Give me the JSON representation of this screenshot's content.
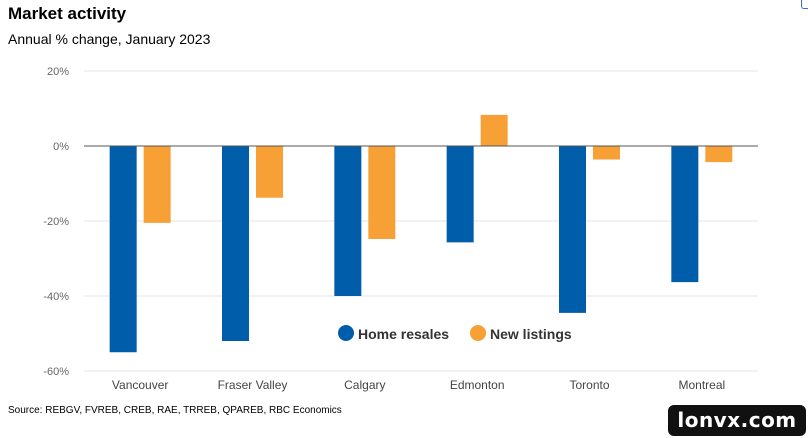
{
  "title": "Market activity",
  "subtitle": "Annual % change, January 2023",
  "source": "Source: REBGV, FVREB, CREB, RAE, TRREB, QPAREB, RBC Economics",
  "watermark": "lonvx.com",
  "colors": {
    "home_resales": "#005daa",
    "new_listings": "#f7a035",
    "grid": "#e6e6e6",
    "zero_line": "#555555"
  },
  "chart_data": {
    "type": "bar",
    "title": "Market activity",
    "subtitle": "Annual % change, January 2023",
    "categories": [
      "Vancouver",
      "Fraser Valley",
      "Calgary",
      "Edmonton",
      "Toronto",
      "Montreal"
    ],
    "series": [
      {
        "name": "Home resales",
        "values": [
          -55,
          -52,
          -40,
          -25.7,
          -44.5,
          -36.3
        ]
      },
      {
        "name": "New listings",
        "values": [
          -20.5,
          -13.8,
          -24.8,
          8.3,
          -3.6,
          -4.3
        ]
      }
    ],
    "y_ticks": [
      "20%",
      "0%",
      "-20%",
      "-40%",
      "-60%"
    ],
    "y_tick_values": [
      20,
      0,
      -20,
      -40,
      -60
    ],
    "ylim": [
      -60,
      20
    ],
    "grid": true,
    "legend_position": "bottom-right"
  }
}
